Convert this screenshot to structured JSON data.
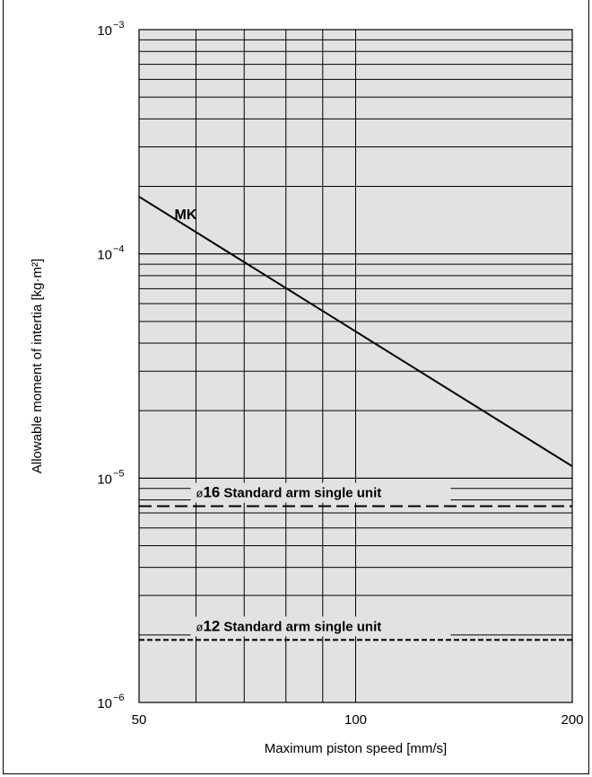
{
  "chart_data": {
    "type": "line",
    "title": "",
    "xlabel": "Maximum piston speed [mm/s]",
    "ylabel": "Allowable moment of intertia [kg·m²]",
    "xscale": "log",
    "yscale": "log",
    "xlim": [
      50,
      200
    ],
    "ylim": [
      1e-06,
      0.001
    ],
    "grid": true,
    "x_tick_labels": [
      {
        "value": 50,
        "label": "50"
      },
      {
        "value": 100,
        "label": "100"
      },
      {
        "value": 200,
        "label": "200"
      }
    ],
    "y_tick_labels": [
      {
        "value": 0.001,
        "base": "10",
        "exp": "−3"
      },
      {
        "value": 0.0001,
        "base": "10",
        "exp": "−4"
      },
      {
        "value": 1e-05,
        "base": "10",
        "exp": "−5"
      },
      {
        "value": 1e-06,
        "base": "10",
        "exp": "−6"
      }
    ],
    "x_minor_grid": [
      50,
      60,
      70,
      80,
      90,
      100,
      200
    ],
    "series": [
      {
        "label": "MK",
        "style": "solid",
        "x": [
          50,
          200
        ],
        "y": [
          0.00018,
          1.13e-05
        ]
      },
      {
        "label_symbol": "ø",
        "label_size": "16",
        "label_text": "Standard arm single unit",
        "style": "dashed",
        "x": [
          50,
          200
        ],
        "y": [
          7.5e-06,
          7.5e-06
        ]
      },
      {
        "label_symbol": "ø",
        "label_size": "12",
        "label_text": "Standard arm single unit",
        "style": "dotted",
        "x": [
          50,
          200
        ],
        "y": [
          1.9e-06,
          1.9e-06
        ]
      }
    ],
    "colors": {
      "plot_bg": "#e2e2e2",
      "grid": "#000000",
      "line": "#000000"
    }
  }
}
